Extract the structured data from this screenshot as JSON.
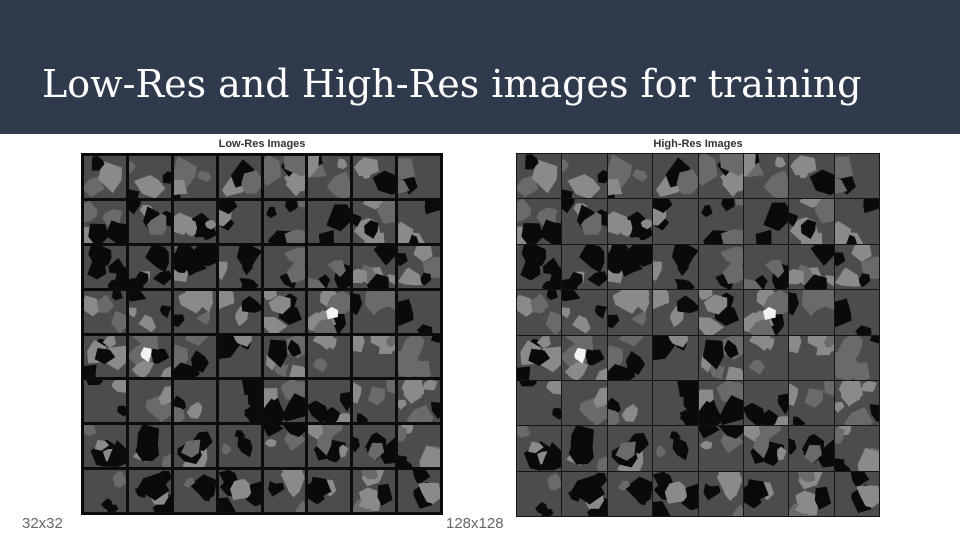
{
  "slide": {
    "title": "Low-Res and High-Res images for training",
    "header_color": "#2f3a4d"
  },
  "panels": {
    "low": {
      "title": "Low-Res Images",
      "caption": "32x32",
      "rows": 8,
      "cols": 8
    },
    "high": {
      "title": "High-Res Images",
      "caption": "128x128",
      "rows": 8,
      "cols": 8
    }
  },
  "tile_palette": {
    "background": "#4c4c4c",
    "pore": "#0a0a0a",
    "mineral_light": "#8a8a8a",
    "mineral_mid": "#6a6a6a",
    "bright_spot": "#f2f2f2"
  }
}
